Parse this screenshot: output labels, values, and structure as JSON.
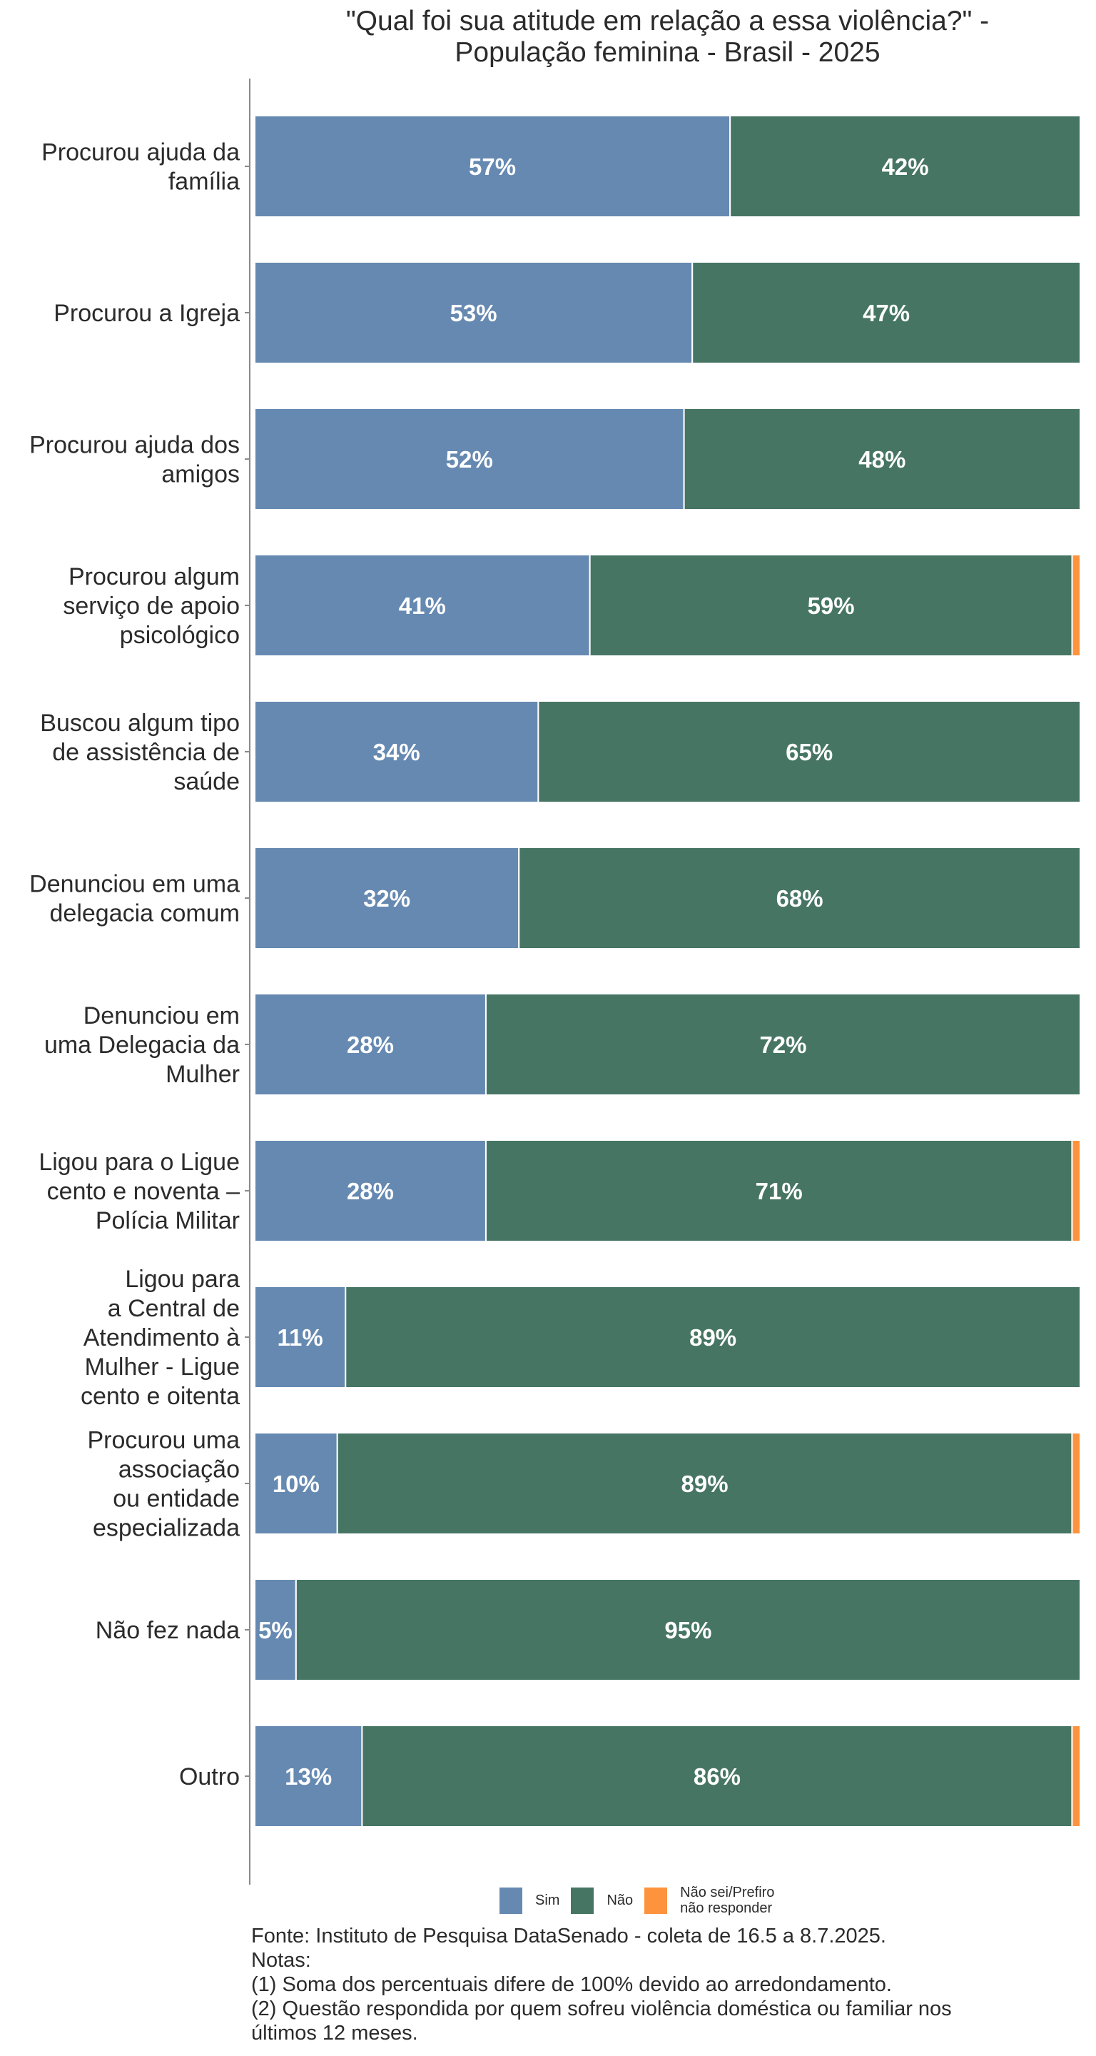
{
  "title": {
    "line1": "\"Qual foi sua atitude em relação a essa violência?\" -",
    "line2": "População feminina - Brasil - 2025"
  },
  "colors": {
    "Sim": "#6689B1",
    "Não": "#467564",
    "Não sei/Prefiro não responder": "#FD933D"
  },
  "legend": {
    "items": [
      {
        "label": "Sim",
        "color": "#6689B1"
      },
      {
        "label": "Não",
        "color": "#467564"
      },
      {
        "label": "Não sei/Prefiro não responder",
        "line1": "Não sei/Prefiro",
        "line2": "não responder",
        "color": "#FD933D"
      }
    ]
  },
  "footer": {
    "source": "Fonte: Instituto de Pesquisa DataSenado - coleta de 16.5 a 8.7.2025.",
    "notes_heading": "Notas:",
    "note1": "(1) Soma dos percentuais difere de 100% devido ao arredondamento.",
    "note2_line1": "(2) Questão respondida por quem sofreu violência doméstica ou familiar nos",
    "note2_line2": "últimos 12 meses."
  },
  "chart_data": {
    "type": "bar",
    "orientation": "horizontal",
    "stacked": "fill",
    "title": "\"Qual foi sua atitude em relação a essa violência?\" - População feminina - Brasil - 2025",
    "xlabel": "",
    "ylabel": "",
    "grid": false,
    "legend_position": "bottom",
    "categories": [
      {
        "label": "Procurou ajuda da família",
        "lines": [
          "Procurou ajuda da",
          "família"
        ]
      },
      {
        "label": "Procurou a Igreja",
        "lines": [
          "Procurou a Igreja"
        ]
      },
      {
        "label": "Procurou ajuda dos amigos",
        "lines": [
          "Procurou ajuda dos",
          "amigos"
        ]
      },
      {
        "label": "Procurou algum serviço de apoio psicológico",
        "lines": [
          "Procurou algum",
          "serviço de apoio",
          "psicológico"
        ]
      },
      {
        "label": "Buscou algum tipo de assistência de saúde",
        "lines": [
          "Buscou algum tipo",
          "de assistência de",
          "saúde"
        ]
      },
      {
        "label": "Denunciou em uma delegacia comum",
        "lines": [
          "Denunciou em uma",
          "delegacia comum"
        ]
      },
      {
        "label": "Denunciou em uma Delegacia da Mulher",
        "lines": [
          "Denunciou em",
          "uma Delegacia da",
          "Mulher"
        ]
      },
      {
        "label": "Ligou para o Ligue cento e noventa – Polícia Militar",
        "lines": [
          "Ligou para o Ligue",
          "cento e noventa –",
          "Polícia Militar"
        ]
      },
      {
        "label": "Ligou para a Central de Atendimento à Mulher - Ligue cento e oitenta",
        "lines": [
          "Ligou para",
          "a Central de",
          "Atendimento à",
          "Mulher - Ligue",
          "cento e oitenta"
        ]
      },
      {
        "label": "Procurou uma associação ou entidade especializada",
        "lines": [
          "Procurou uma",
          "associação",
          "ou entidade",
          "especializada"
        ]
      },
      {
        "label": "Não fez nada",
        "lines": [
          "Não fez nada"
        ]
      },
      {
        "label": "Outro",
        "lines": [
          "Outro"
        ]
      }
    ],
    "series": [
      {
        "name": "Sim",
        "values": [
          57,
          53,
          52,
          41,
          34,
          32,
          28,
          28,
          11,
          10,
          5,
          13
        ],
        "labeled": true
      },
      {
        "name": "Não",
        "values": [
          42,
          47,
          48,
          59,
          65,
          68,
          72,
          71,
          89,
          89,
          95,
          86
        ],
        "labeled": true
      },
      {
        "name": "Não sei/Prefiro não responder",
        "values": [
          0,
          0,
          0,
          1,
          0,
          0,
          0,
          1,
          0,
          1,
          0,
          1
        ],
        "labeled": false
      }
    ],
    "value_suffix": "%",
    "xlim": [
      0,
      100
    ]
  }
}
